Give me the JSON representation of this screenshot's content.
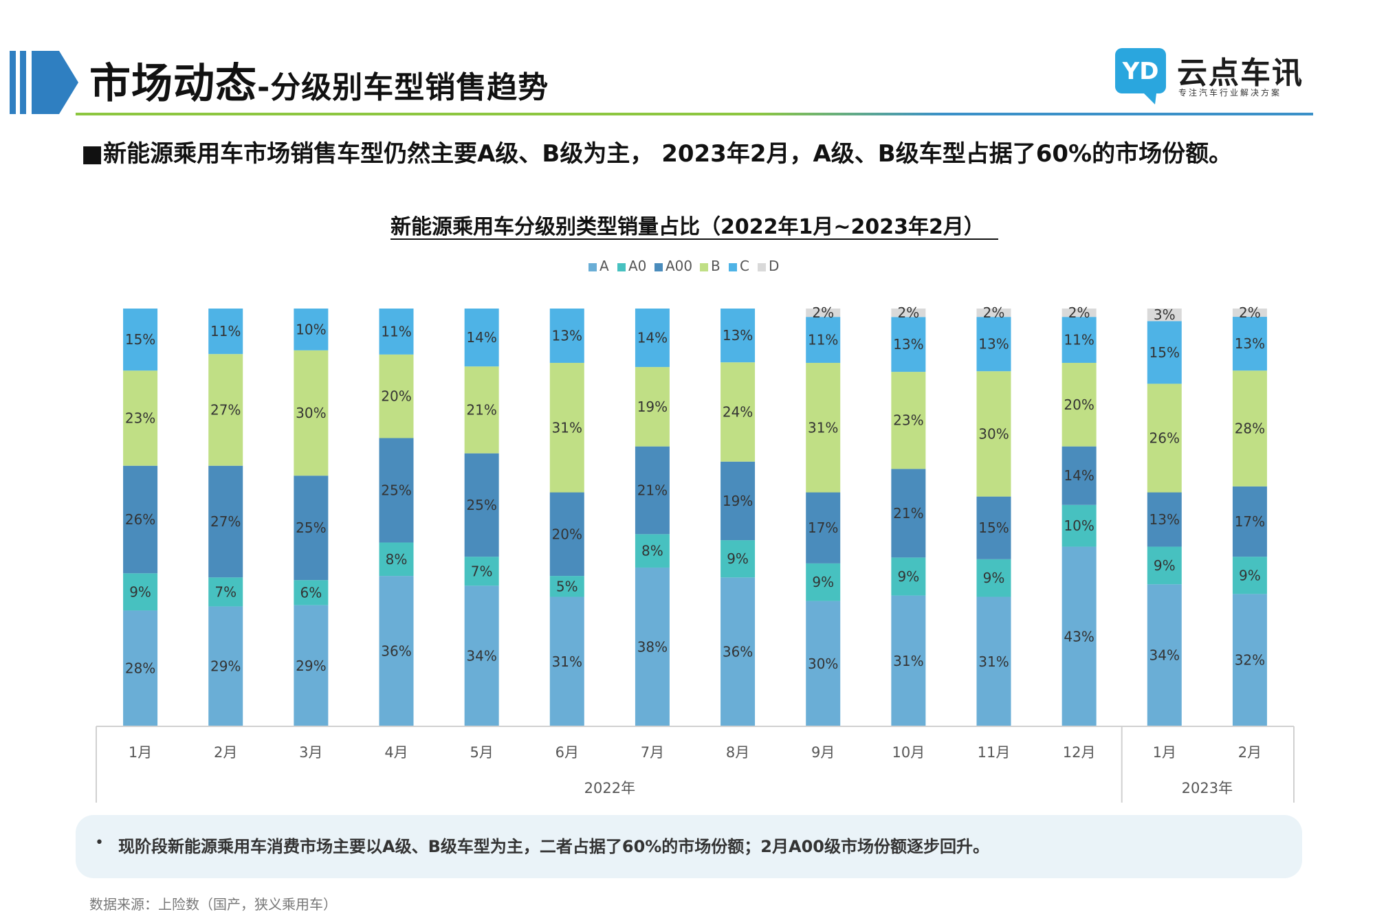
{
  "header": {
    "title_main": "市场动态",
    "title_sub": "-分级别车型销售趋势",
    "logo_text": "云点车讯",
    "logo_tagline": "专注汽车行业解决方案",
    "logo_icon": "yd-logo-icon"
  },
  "headline": "■新能源乘用车市场销售车型仍然主要A级、B级为主， 2023年2月，A级、B级车型占据了60%的市场份额。",
  "chart_data": {
    "type": "bar",
    "stacked": true,
    "percent": true,
    "title": "新能源乘用车分级别类型销量占比（2022年1月~2023年2月）",
    "legend_position": "top",
    "categories": [
      "1月",
      "2月",
      "3月",
      "4月",
      "5月",
      "6月",
      "7月",
      "8月",
      "9月",
      "10月",
      "11月",
      "12月",
      "1月",
      "2月"
    ],
    "year_groups": [
      {
        "label": "2022年",
        "count": 12
      },
      {
        "label": "2023年",
        "count": 2
      }
    ],
    "series": [
      {
        "name": "A",
        "color": "#6aaed6",
        "values": [
          28,
          29,
          29,
          36,
          34,
          31,
          38,
          36,
          30,
          31,
          31,
          43,
          34,
          32
        ]
      },
      {
        "name": "A0",
        "color": "#47c1c0",
        "values": [
          9,
          7,
          6,
          8,
          7,
          5,
          8,
          9,
          9,
          9,
          9,
          10,
          9,
          9
        ]
      },
      {
        "name": "A00",
        "color": "#4a8cbc",
        "values": [
          26,
          27,
          25,
          25,
          25,
          20,
          21,
          19,
          17,
          21,
          15,
          14,
          13,
          17
        ]
      },
      {
        "name": "B",
        "color": "#c0df85",
        "values": [
          23,
          27,
          30,
          20,
          21,
          31,
          19,
          24,
          31,
          23,
          30,
          20,
          26,
          28
        ]
      },
      {
        "name": "C",
        "color": "#4eb3e6",
        "values": [
          15,
          11,
          10,
          11,
          14,
          13,
          14,
          13,
          11,
          13,
          13,
          11,
          15,
          13
        ]
      },
      {
        "name": "D",
        "color": "#d9d9d9",
        "values": [
          0,
          0,
          0,
          0,
          0,
          0,
          0,
          0,
          2,
          2,
          2,
          2,
          3,
          2
        ]
      }
    ]
  },
  "footer": {
    "bullet": "•",
    "text": "现阶段新能源乘用车消费市场主要以A级、B级车型为主，二者占据了60%的市场份额；2月A00级市场份额逐步回升。"
  },
  "source": "数据来源：上险数（国产，狭义乘用车）"
}
